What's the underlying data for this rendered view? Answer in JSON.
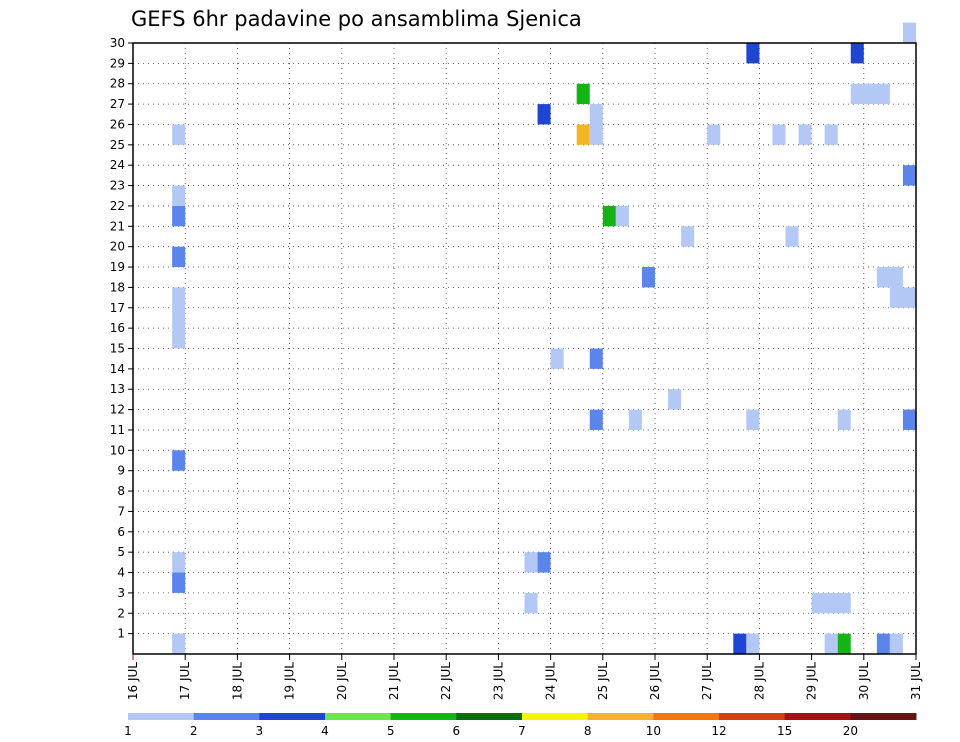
{
  "chart_data": {
    "type": "heatmap",
    "title": "GEFS 6hr padavine po ansamblima Sjenica",
    "xlabel": "",
    "ylabel": "",
    "x_ticks": [
      "16 JUL",
      "17 JUL",
      "18 JUL",
      "19 JUL",
      "20 JUL",
      "21 JUL",
      "22 JUL",
      "23 JUL",
      "24 JUL",
      "25 JUL",
      "26 JUL",
      "27 JUL",
      "28 JUL",
      "29 JUL",
      "30 JUL",
      "31 JUL"
    ],
    "xlim": [
      0,
      15
    ],
    "y_ticks": [
      "1",
      "2",
      "3",
      "4",
      "5",
      "6",
      "7",
      "8",
      "9",
      "10",
      "11",
      "12",
      "13",
      "14",
      "15",
      "16",
      "17",
      "18",
      "19",
      "20",
      "21",
      "22",
      "23",
      "24",
      "25",
      "26",
      "27",
      "28",
      "29",
      "30"
    ],
    "ylim": [
      0,
      30
    ],
    "grid": true,
    "legend": {
      "placement": "bottom",
      "levels": [
        "1",
        "2",
        "3",
        "4",
        "5",
        "6",
        "7",
        "8",
        "10",
        "12",
        "15",
        "20"
      ],
      "colors": [
        "#b4c8f5",
        "#5a86ec",
        "#1e46d2",
        "#6ee650",
        "#14b414",
        "#0a6e0a",
        "#f5f500",
        "#f5b428",
        "#f07814",
        "#dc3c14",
        "#a01414",
        "#641414"
      ]
    },
    "cells": [
      {
        "day": 0.75,
        "member": 0,
        "span": 0.25,
        "class": 0
      },
      {
        "day": 0.75,
        "member": 3,
        "class": 1
      },
      {
        "day": 0.75,
        "member": 4,
        "class": 0
      },
      {
        "day": 0.75,
        "member": 9,
        "class": 1
      },
      {
        "day": 0.75,
        "member": 15,
        "span_members": 3,
        "class": 0
      },
      {
        "day": 0.75,
        "member": 19,
        "class": 1
      },
      {
        "day": 0.75,
        "member": 21,
        "class": 1
      },
      {
        "day": 0.75,
        "member": 22,
        "class": 0
      },
      {
        "day": 0.75,
        "member": 25,
        "class": 0
      },
      {
        "day": 7.5,
        "member": 2,
        "class": 0
      },
      {
        "day": 7.5,
        "member": 4,
        "class": 0
      },
      {
        "day": 7.75,
        "member": 4,
        "class": 1
      },
      {
        "day": 7.75,
        "member": 26,
        "class": 2
      },
      {
        "day": 8.0,
        "member": 14,
        "class": 0
      },
      {
        "day": 8.5,
        "member": 25,
        "class": 7
      },
      {
        "day": 8.5,
        "member": 27,
        "class": 4
      },
      {
        "day": 8.75,
        "member": 11,
        "class": 1
      },
      {
        "day": 8.75,
        "member": 14,
        "class": 1
      },
      {
        "day": 8.75,
        "member": 25,
        "span_members": 2,
        "class": 0
      },
      {
        "day": 9.0,
        "member": 21,
        "class": 4
      },
      {
        "day": 9.25,
        "member": 21,
        "class": 0
      },
      {
        "day": 9.5,
        "member": 11,
        "class": 0
      },
      {
        "day": 9.75,
        "member": 18,
        "class": 1
      },
      {
        "day": 10.25,
        "member": 12,
        "class": 0
      },
      {
        "day": 10.5,
        "member": 20,
        "class": 0
      },
      {
        "day": 11.0,
        "member": 25,
        "class": 0
      },
      {
        "day": 11.5,
        "member": 0,
        "class": 2
      },
      {
        "day": 11.75,
        "member": 0,
        "class": 0
      },
      {
        "day": 11.75,
        "member": 11,
        "class": 0
      },
      {
        "day": 11.75,
        "member": 29,
        "class": 2
      },
      {
        "day": 12.25,
        "member": 25,
        "class": 0
      },
      {
        "day": 12.5,
        "member": 20,
        "class": 0
      },
      {
        "day": 12.75,
        "member": 25,
        "class": 0
      },
      {
        "day": 13.0,
        "member": 2,
        "span": 0.75,
        "class": 0
      },
      {
        "day": 13.25,
        "member": 0,
        "class": 0
      },
      {
        "day": 13.25,
        "member": 25,
        "class": 0
      },
      {
        "day": 13.5,
        "member": 0,
        "class": 4
      },
      {
        "day": 13.5,
        "member": 11,
        "class": 0
      },
      {
        "day": 13.75,
        "member": 27,
        "span": 0.75,
        "class": 0
      },
      {
        "day": 13.75,
        "member": 29,
        "class": 2
      },
      {
        "day": 14.25,
        "member": 0,
        "class": 1
      },
      {
        "day": 14.25,
        "member": 18,
        "span": 0.5,
        "class": 0
      },
      {
        "day": 14.5,
        "member": 0,
        "class": 0
      },
      {
        "day": 14.5,
        "member": 17,
        "span": 0.5,
        "class": 0
      },
      {
        "day": 14.75,
        "member": 11,
        "class": 1
      },
      {
        "day": 14.75,
        "member": 23,
        "class": 1
      },
      {
        "day": 14.75,
        "member": 30,
        "class": 0
      }
    ]
  }
}
